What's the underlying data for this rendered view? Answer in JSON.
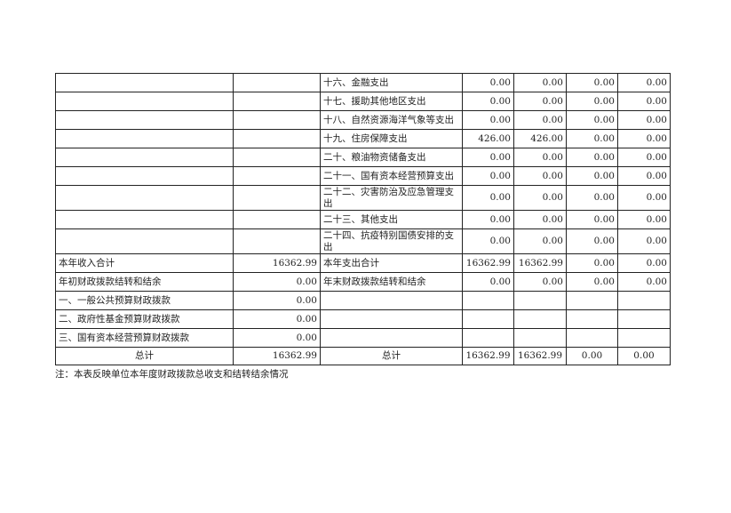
{
  "rows": [
    {
      "c1": "",
      "c2": "",
      "c3": "十六、金融支出",
      "v": [
        "0.00",
        "0.00",
        "0.00",
        "0.00"
      ]
    },
    {
      "c1": "",
      "c2": "",
      "c3": "十七、援助其他地区支出",
      "v": [
        "0.00",
        "0.00",
        "0.00",
        "0.00"
      ]
    },
    {
      "c1": "",
      "c2": "",
      "c3": "十八、自然资源海洋气象等支出",
      "v": [
        "0.00",
        "0.00",
        "0.00",
        "0.00"
      ]
    },
    {
      "c1": "",
      "c2": "",
      "c3": "十九、住房保障支出",
      "v": [
        "426.00",
        "426.00",
        "0.00",
        "0.00"
      ]
    },
    {
      "c1": "",
      "c2": "",
      "c3": "二十、粮油物资储备支出",
      "v": [
        "0.00",
        "0.00",
        "0.00",
        "0.00"
      ]
    },
    {
      "c1": "",
      "c2": "",
      "c3": "二十一、国有资本经营预算支出",
      "v": [
        "0.00",
        "0.00",
        "0.00",
        "0.00"
      ]
    },
    {
      "c1": "",
      "c2": "",
      "c3": "二十二、灾害防治及应急管理支出",
      "v": [
        "0.00",
        "0.00",
        "0.00",
        "0.00"
      ],
      "tall": true
    },
    {
      "c1": "",
      "c2": "",
      "c3": "二十三、其他支出",
      "v": [
        "0.00",
        "0.00",
        "0.00",
        "0.00"
      ]
    },
    {
      "c1": "",
      "c2": "",
      "c3": "二十四、抗疫特别国债安排的支出",
      "v": [
        "0.00",
        "0.00",
        "0.00",
        "0.00"
      ],
      "tall": true
    },
    {
      "c1": "本年收入合计",
      "c2": "16362.99",
      "c3": "本年支出合计",
      "v": [
        "16362.99",
        "16362.99",
        "0.00",
        "0.00"
      ]
    },
    {
      "c1": "年初财政拨款结转和结余",
      "c2": "0.00",
      "c3": "年末财政拨款结转和结余",
      "v": [
        "0.00",
        "0.00",
        "0.00",
        "0.00"
      ]
    },
    {
      "c1": "一、一般公共预算财政拨款",
      "c2": "0.00",
      "c3": "",
      "v": [
        "",
        "",
        "",
        ""
      ]
    },
    {
      "c1": "二、政府性基金预算财政拨款",
      "c2": "0.00",
      "c3": "",
      "v": [
        "",
        "",
        "",
        ""
      ]
    },
    {
      "c1": "三、国有资本经营预算财政拨款",
      "c2": "0.00",
      "c3": "",
      "v": [
        "",
        "",
        "",
        ""
      ]
    },
    {
      "c1": "总计",
      "c2": "16362.99",
      "c3": "总计",
      "v": [
        "16362.99",
        "16362.99",
        "0.00",
        "0.00"
      ],
      "total": true
    }
  ],
  "note": "注：本表反映单位本年度财政拨款总收支和结转结余情况"
}
